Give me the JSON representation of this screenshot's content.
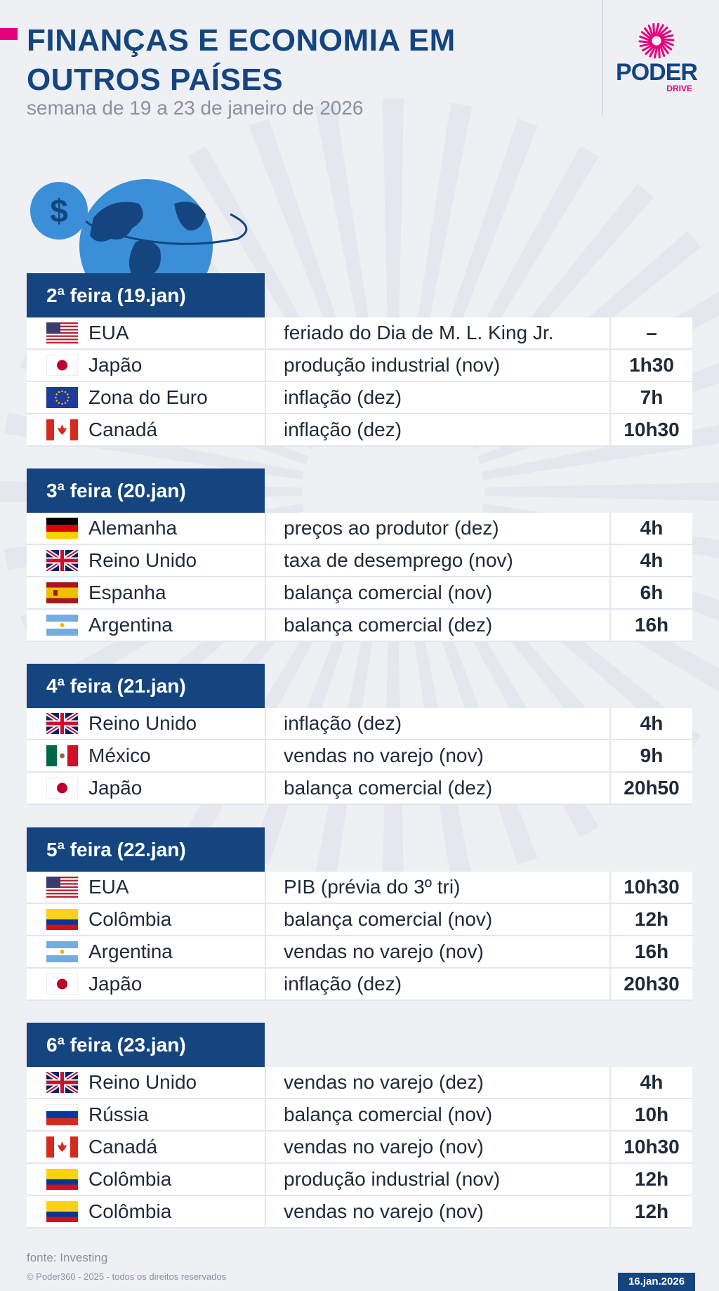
{
  "header": {
    "title_line1": "FINANÇAS E ECONOMIA EM",
    "title_line2": "OUTROS PAÍSES",
    "subtitle": "semana de 19 a 23 de janeiro de 2026"
  },
  "logo": {
    "word": "PODER",
    "sub": "DRIVE"
  },
  "icons": {
    "dollar": "dollar-icon",
    "globe": "globe-icon"
  },
  "colors": {
    "navy": "#14457f",
    "magenta": "#e5007e",
    "gray_text": "#8791a3",
    "background": "#eef0f4"
  },
  "days": [
    {
      "label": "2ª feira (19.jan)",
      "rows": [
        {
          "flag": "us",
          "country": "EUA",
          "event": "feriado do Dia de M. L. King Jr.",
          "time": "–"
        },
        {
          "flag": "jp",
          "country": "Japão",
          "event": "produção industrial (nov)",
          "time": "1h30"
        },
        {
          "flag": "eu",
          "country": "Zona do Euro",
          "event": "inflação (dez)",
          "time": "7h"
        },
        {
          "flag": "ca",
          "country": "Canadá",
          "event": "inflação (dez)",
          "time": "10h30"
        }
      ]
    },
    {
      "label": "3ª feira (20.jan)",
      "rows": [
        {
          "flag": "de",
          "country": "Alemanha",
          "event": "preços ao produtor (dez)",
          "time": "4h"
        },
        {
          "flag": "gb",
          "country": "Reino Unido",
          "event": "taxa de desemprego (nov)",
          "time": "4h"
        },
        {
          "flag": "es",
          "country": "Espanha",
          "event": "balança comercial (nov)",
          "time": "6h"
        },
        {
          "flag": "ar",
          "country": "Argentina",
          "event": "balança comercial (dez)",
          "time": "16h"
        }
      ]
    },
    {
      "label": "4ª feira (21.jan)",
      "rows": [
        {
          "flag": "gb",
          "country": "Reino Unido",
          "event": "inflação (dez)",
          "time": "4h"
        },
        {
          "flag": "mx",
          "country": "México",
          "event": "vendas no varejo (nov)",
          "time": "9h"
        },
        {
          "flag": "jp",
          "country": "Japão",
          "event": "balança comercial (dez)",
          "time": "20h50"
        }
      ]
    },
    {
      "label": "5ª feira (22.jan)",
      "rows": [
        {
          "flag": "us",
          "country": "EUA",
          "event": "PIB (prévia do 3º tri)",
          "time": "10h30"
        },
        {
          "flag": "co",
          "country": "Colômbia",
          "event": "balança comercial (nov)",
          "time": "12h"
        },
        {
          "flag": "ar",
          "country": "Argentina",
          "event": "vendas no varejo (nov)",
          "time": "16h"
        },
        {
          "flag": "jp",
          "country": "Japão",
          "event": "inflação (dez)",
          "time": "20h30"
        }
      ]
    },
    {
      "label": "6ª feira (23.jan)",
      "rows": [
        {
          "flag": "gb",
          "country": "Reino Unido",
          "event": "vendas no varejo (dez)",
          "time": "4h"
        },
        {
          "flag": "ru",
          "country": "Rússia",
          "event": "balança comercial (nov)",
          "time": "10h"
        },
        {
          "flag": "ca",
          "country": "Canadá",
          "event": "vendas no varejo (nov)",
          "time": "10h30"
        },
        {
          "flag": "co",
          "country": "Colômbia",
          "event": "produção industrial (nov)",
          "time": "12h"
        },
        {
          "flag": "co",
          "country": "Colômbia",
          "event": "vendas no varejo (nov)",
          "time": "12h"
        }
      ]
    }
  ],
  "footer": {
    "source": "fonte: Investing",
    "copyright": "© Poder360 - 2025 - todos os direitos reservados",
    "date": "16.jan.2026"
  }
}
